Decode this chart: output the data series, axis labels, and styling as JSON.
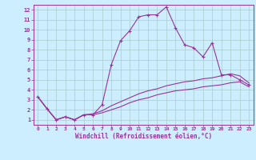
{
  "xlabel": "Windchill (Refroidissement éolien,°C)",
  "bg_color": "#cceeff",
  "line_color": "#993399",
  "grid_color": "#aacccc",
  "xlim": [
    -0.5,
    23.5
  ],
  "ylim": [
    0.5,
    12.5
  ],
  "xticks": [
    0,
    1,
    2,
    3,
    4,
    5,
    6,
    7,
    8,
    9,
    10,
    11,
    12,
    13,
    14,
    15,
    16,
    17,
    18,
    19,
    20,
    21,
    22,
    23
  ],
  "yticks": [
    1,
    2,
    3,
    4,
    5,
    6,
    7,
    8,
    9,
    10,
    11,
    12
  ],
  "series": [
    {
      "x": [
        0,
        1,
        2,
        3,
        4,
        5,
        6,
        7,
        8,
        9,
        10,
        11,
        12,
        13,
        14,
        15,
        16,
        17,
        18,
        19,
        20,
        21,
        22,
        23
      ],
      "y": [
        3.3,
        2.1,
        1.0,
        1.3,
        1.0,
        1.5,
        1.5,
        2.5,
        6.5,
        8.9,
        9.9,
        11.3,
        11.5,
        11.5,
        12.3,
        10.2,
        8.5,
        8.2,
        7.3,
        8.7,
        5.5,
        5.5,
        5.0,
        4.5
      ],
      "marker": true
    },
    {
      "x": [
        0,
        1,
        2,
        3,
        4,
        5,
        6,
        7,
        8,
        9,
        10,
        11,
        12,
        13,
        14,
        15,
        16,
        17,
        18,
        19,
        20,
        21,
        22,
        23
      ],
      "y": [
        3.3,
        2.1,
        1.0,
        1.3,
        1.0,
        1.5,
        1.6,
        1.9,
        2.4,
        2.8,
        3.2,
        3.6,
        3.9,
        4.1,
        4.4,
        4.6,
        4.8,
        4.9,
        5.1,
        5.2,
        5.4,
        5.6,
        5.4,
        4.7
      ],
      "marker": false
    },
    {
      "x": [
        0,
        1,
        2,
        3,
        4,
        5,
        6,
        7,
        8,
        9,
        10,
        11,
        12,
        13,
        14,
        15,
        16,
        17,
        18,
        19,
        20,
        21,
        22,
        23
      ],
      "y": [
        3.3,
        2.1,
        1.0,
        1.3,
        1.0,
        1.5,
        1.5,
        1.7,
        2.0,
        2.3,
        2.7,
        3.0,
        3.2,
        3.5,
        3.7,
        3.9,
        4.0,
        4.1,
        4.3,
        4.4,
        4.5,
        4.7,
        4.8,
        4.3
      ],
      "marker": false
    }
  ]
}
